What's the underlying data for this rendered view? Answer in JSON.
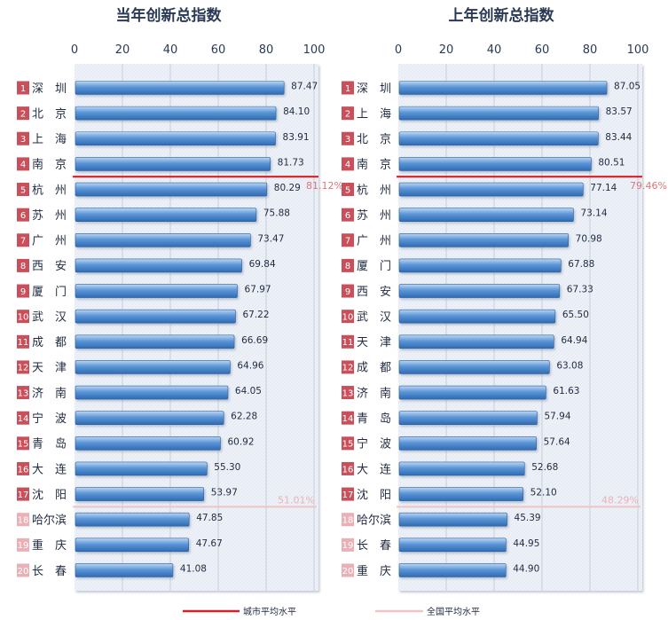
{
  "chart_data": [
    {
      "type": "bar",
      "orientation": "horizontal",
      "title": "当年创新总指数",
      "xlim": [
        0,
        100
      ],
      "ticks": [
        "0",
        "20",
        "40",
        "60",
        "80",
        "100"
      ],
      "ranks": [
        "1",
        "2",
        "3",
        "4",
        "5",
        "6",
        "7",
        "8",
        "9",
        "10",
        "11",
        "12",
        "13",
        "14",
        "15",
        "16",
        "17",
        "18",
        "19",
        "20"
      ],
      "categories": [
        "深　圳",
        "北　京",
        "上　海",
        "南　京",
        "杭　州",
        "苏　州",
        "广　州",
        "西　安",
        "厦　门",
        "武　汉",
        "成　都",
        "天　津",
        "济　南",
        "宁　波",
        "青　岛",
        "大　连",
        "沈　阳",
        "哈尔滨",
        "重　庆",
        "长　春"
      ],
      "values": [
        87.47,
        84.1,
        83.91,
        81.73,
        80.29,
        75.88,
        73.47,
        69.84,
        67.97,
        67.22,
        66.69,
        64.96,
        64.05,
        62.28,
        60.92,
        55.3,
        53.97,
        47.85,
        47.67,
        41.08
      ],
      "value_labels": [
        "87.47",
        "84.10",
        "83.91",
        "81.73",
        "80.29",
        "75.88",
        "73.47",
        "69.84",
        "67.97",
        "67.22",
        "66.69",
        "64.96",
        "64.05",
        "62.28",
        "60.92",
        "55.30",
        "53.97",
        "47.85",
        "47.67",
        "41.08"
      ],
      "city_avg": {
        "label": "81.12%",
        "after_rank": 4
      },
      "national_avg": {
        "label": "51.01%",
        "after_rank": 17
      }
    },
    {
      "type": "bar",
      "orientation": "horizontal",
      "title": "上年创新总指数",
      "xlim": [
        0,
        100
      ],
      "ticks": [
        "0",
        "20",
        "40",
        "60",
        "80",
        "100"
      ],
      "ranks": [
        "1",
        "2",
        "3",
        "4",
        "5",
        "6",
        "7",
        "8",
        "9",
        "10",
        "11",
        "12",
        "13",
        "14",
        "15",
        "16",
        "17",
        "18",
        "19",
        "20"
      ],
      "categories": [
        "深　圳",
        "上　海",
        "北　京",
        "南　京",
        "杭　州",
        "苏　州",
        "广　州",
        "厦　门",
        "西　安",
        "武　汉",
        "天　津",
        "成　都",
        "济　南",
        "青　岛",
        "宁　波",
        "大　连",
        "沈　阳",
        "哈尔滨",
        "长　春",
        "重　庆"
      ],
      "values": [
        87.05,
        83.57,
        83.44,
        80.51,
        77.14,
        73.14,
        70.98,
        67.88,
        67.33,
        65.5,
        64.94,
        63.08,
        61.63,
        57.94,
        57.64,
        52.68,
        52.1,
        45.39,
        44.95,
        44.9
      ],
      "value_labels": [
        "87.05",
        "83.57",
        "83.44",
        "80.51",
        "77.14",
        "73.14",
        "70.98",
        "67.88",
        "67.33",
        "65.50",
        "64.94",
        "63.08",
        "61.63",
        "57.94",
        "57.64",
        "52.68",
        "52.10",
        "45.39",
        "44.95",
        "44.90"
      ],
      "city_avg": {
        "label": "79.46%",
        "after_rank": 4
      },
      "national_avg": {
        "label": "48.29%",
        "after_rank": 17
      }
    }
  ],
  "legend": [
    {
      "label": "城市平均水平",
      "color": "#d32127"
    },
    {
      "label": "全国平均水平",
      "color": "#f0c4c4"
    }
  ],
  "colors": {
    "bar_top": "#bcd7f3",
    "bar_mid": "#5b95d6",
    "bar_bottom": "#2f6bb3",
    "rank_dark": "#c9505b",
    "rank_light": "#e9b0b7",
    "city_line": "#d32127",
    "national_line": "#f0c4c4",
    "avg_text": "#e0747a"
  }
}
